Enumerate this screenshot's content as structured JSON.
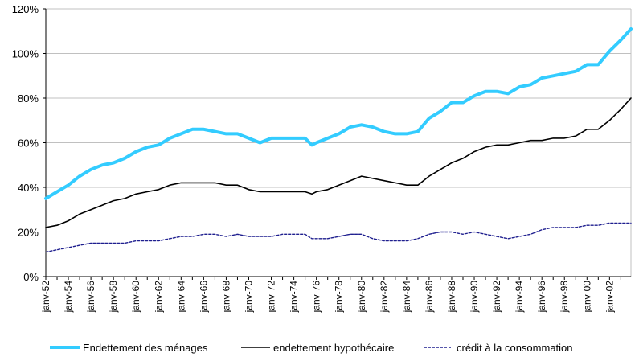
{
  "chart_data": {
    "type": "line",
    "title": "",
    "xlabel": "",
    "ylabel": "",
    "ylim": [
      0,
      1.2
    ],
    "y_ticks": [
      "0%",
      "20%",
      "40%",
      "60%",
      "80%",
      "100%",
      "120%"
    ],
    "y_tick_values": [
      0,
      0.2,
      0.4,
      0.6,
      0.8,
      1.0,
      1.2
    ],
    "x_tick_labels": [
      "janv-52",
      "janv-54",
      "janv-56",
      "janv-58",
      "janv-60",
      "janv-62",
      "janv-64",
      "janv-66",
      "janv-68",
      "janv-70",
      "janv-72",
      "janv-74",
      "janv-76",
      "janv-78",
      "janv-80",
      "janv-82",
      "janv-84",
      "janv-86",
      "janv-88",
      "janv-90",
      "janv-92",
      "janv-94",
      "janv-96",
      "janv-98",
      "janv-00",
      "janv-02"
    ],
    "x_tick_years": [
      1952,
      1954,
      1956,
      1958,
      1960,
      1962,
      1964,
      1966,
      1968,
      1970,
      1972,
      1974,
      1976,
      1978,
      1980,
      1982,
      1984,
      1986,
      1988,
      1990,
      1992,
      1994,
      1996,
      1998,
      2000,
      2002
    ],
    "xlim": [
      1952,
      2003.9
    ],
    "grid": "horizontal",
    "legend": "bottom",
    "x": [
      1952,
      1953,
      1954,
      1955,
      1956,
      1957,
      1958,
      1959,
      1960,
      1961,
      1962,
      1963,
      1964,
      1965,
      1966,
      1967,
      1968,
      1969,
      1970,
      1971,
      1972,
      1973,
      1974,
      1975,
      1975.6,
      1976,
      1977,
      1978,
      1979,
      1980,
      1981,
      1982,
      1983,
      1984,
      1985,
      1986,
      1987,
      1988,
      1989,
      1990,
      1991,
      1992,
      1993,
      1994,
      1995,
      1996,
      1997,
      1998,
      1999,
      2000,
      2001,
      2002,
      2003,
      2003.9
    ],
    "series": [
      {
        "name": "Endettement des ménages",
        "color": "#33ccff",
        "style": "solid",
        "values": [
          0.35,
          0.38,
          0.41,
          0.45,
          0.48,
          0.5,
          0.51,
          0.53,
          0.56,
          0.58,
          0.59,
          0.62,
          0.64,
          0.66,
          0.66,
          0.65,
          0.64,
          0.64,
          0.62,
          0.6,
          0.62,
          0.62,
          0.62,
          0.62,
          0.59,
          0.6,
          0.62,
          0.64,
          0.67,
          0.68,
          0.67,
          0.65,
          0.64,
          0.64,
          0.65,
          0.71,
          0.74,
          0.78,
          0.78,
          0.81,
          0.83,
          0.83,
          0.82,
          0.85,
          0.86,
          0.89,
          0.9,
          0.91,
          0.92,
          0.95,
          0.95,
          1.01,
          1.06,
          1.11
        ]
      },
      {
        "name": "endettement hypothécaire",
        "color": "#000000",
        "style": "solid",
        "values": [
          0.22,
          0.23,
          0.25,
          0.28,
          0.3,
          0.32,
          0.34,
          0.35,
          0.37,
          0.38,
          0.39,
          0.41,
          0.42,
          0.42,
          0.42,
          0.42,
          0.41,
          0.41,
          0.39,
          0.38,
          0.38,
          0.38,
          0.38,
          0.38,
          0.37,
          0.38,
          0.39,
          0.41,
          0.43,
          0.45,
          0.44,
          0.43,
          0.42,
          0.41,
          0.41,
          0.45,
          0.48,
          0.51,
          0.53,
          0.56,
          0.58,
          0.59,
          0.59,
          0.6,
          0.61,
          0.61,
          0.62,
          0.62,
          0.63,
          0.66,
          0.66,
          0.7,
          0.75,
          0.8
        ]
      },
      {
        "name": "crédit à la consommation",
        "color": "#1f1f8f",
        "style": "dashed",
        "values": [
          0.11,
          0.12,
          0.13,
          0.14,
          0.15,
          0.15,
          0.15,
          0.15,
          0.16,
          0.16,
          0.16,
          0.17,
          0.18,
          0.18,
          0.19,
          0.19,
          0.18,
          0.19,
          0.18,
          0.18,
          0.18,
          0.19,
          0.19,
          0.19,
          0.17,
          0.17,
          0.17,
          0.18,
          0.19,
          0.19,
          0.17,
          0.16,
          0.16,
          0.16,
          0.17,
          0.19,
          0.2,
          0.2,
          0.19,
          0.2,
          0.19,
          0.18,
          0.17,
          0.18,
          0.19,
          0.21,
          0.22,
          0.22,
          0.22,
          0.23,
          0.23,
          0.24,
          0.24,
          0.24
        ]
      }
    ]
  }
}
